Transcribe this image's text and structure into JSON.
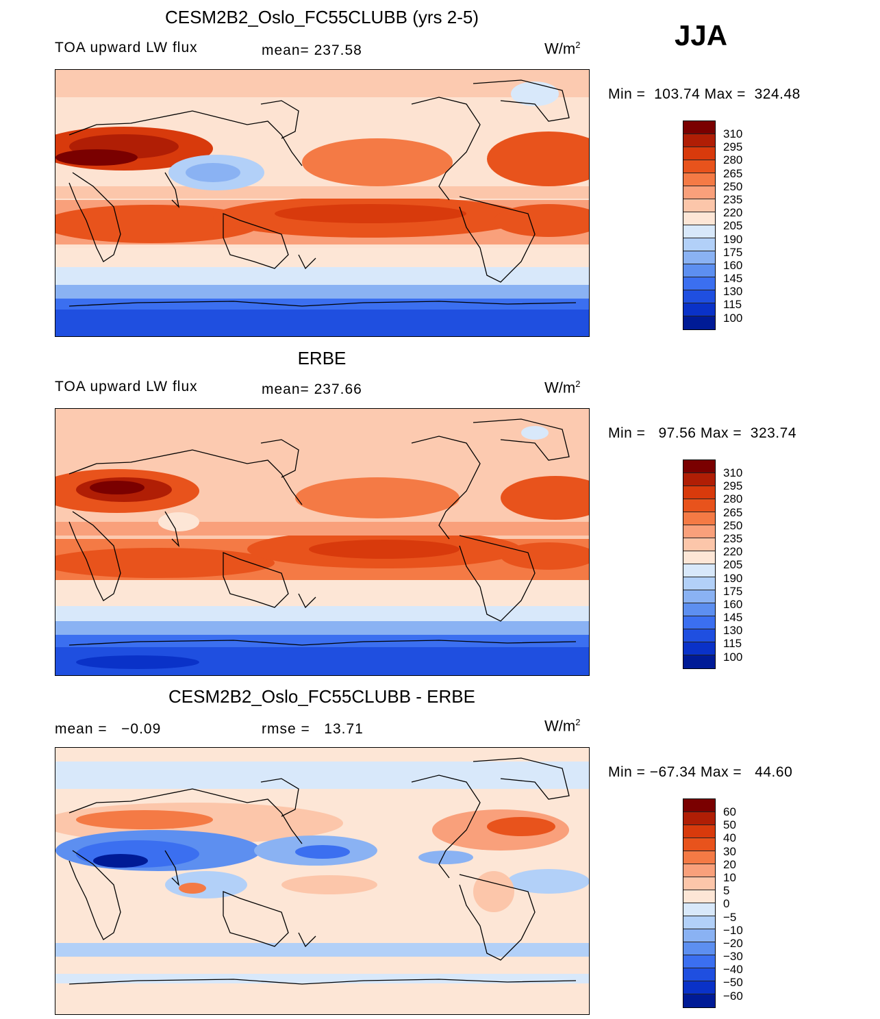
{
  "season": "JJA",
  "panels": [
    {
      "title": "CESM2B2_Oslo_FC55CLUBB (yrs 2-5)",
      "left_label": "TOA upward LW flux",
      "center_label": "mean= 237.58",
      "unit_base": "W/m",
      "unit_exp": "2",
      "minmax": "Min =  103.74 Max =  324.48",
      "colorbar_labels": [
        "310",
        "295",
        "280",
        "265",
        "250",
        "235",
        "220",
        "205",
        "190",
        "175",
        "160",
        "145",
        "130",
        "115",
        "100"
      ]
    },
    {
      "title": "ERBE",
      "left_label": "TOA upward LW flux",
      "center_label": "mean= 237.66",
      "unit_base": "W/m",
      "unit_exp": "2",
      "minmax": "Min =   97.56 Max =  323.74",
      "colorbar_labels": [
        "310",
        "295",
        "280",
        "265",
        "250",
        "235",
        "220",
        "205",
        "190",
        "175",
        "160",
        "145",
        "130",
        "115",
        "100"
      ]
    },
    {
      "title": "CESM2B2_Oslo_FC55CLUBB - ERBE",
      "left_label": "mean =   −0.09",
      "center_label": "rmse =   13.71",
      "unit_base": "W/m",
      "unit_exp": "2",
      "minmax": "Min = −67.34 Max =   44.60",
      "colorbar_labels": [
        "60",
        "50",
        "40",
        "30",
        "20",
        "10",
        "5",
        "0",
        "−5",
        "−10",
        "−20",
        "−30",
        "−40",
        "−50",
        "−60"
      ]
    }
  ],
  "colors": {
    "scale": [
      "#7a0000",
      "#b01e05",
      "#d83a0c",
      "#e8531c",
      "#f47a45",
      "#f9a07b",
      "#fcc6aa",
      "#fde6d6",
      "#d8e8fa",
      "#b2d0f8",
      "#8ab2f3",
      "#5d8ff0",
      "#3b6ff0",
      "#1f4fe0",
      "#0a32c8",
      "#001b96"
    ]
  }
}
